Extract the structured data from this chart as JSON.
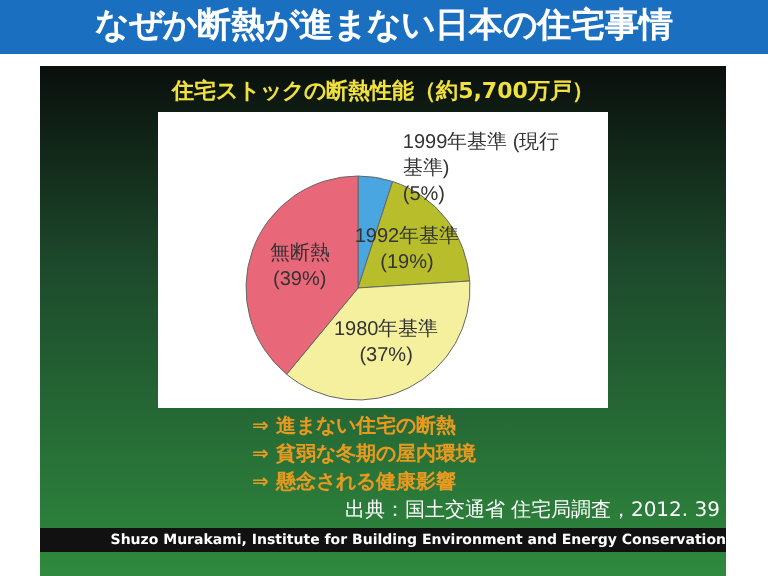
{
  "chart_data": {
    "type": "pie",
    "title": "なぜか断熱が進まない日本の住宅事情",
    "subtitle": "住宅ストックの断熱性能（約5,700万戸）",
    "categories": [
      "1999年基準 (現行基準)",
      "1992年基準",
      "1980年基準",
      "無断熱"
    ],
    "values": [
      5,
      19,
      37,
      39
    ],
    "value_labels": [
      "(5%)",
      "(19%)",
      "(37%)",
      "(39%)"
    ],
    "colors": [
      "#4aa6e0",
      "#b8bd2c",
      "#f5f09e",
      "#e8687a"
    ],
    "legend": false,
    "annotations": [
      "⇒ 進まない住宅の断熱",
      "⇒ 貧弱な冬期の屋内環境",
      "⇒ 懸念される健康影響",
      "出典：国土交通省 住宅局調査，2012. 39",
      "Shuzo Murakami,  Institute for Building Environment and Energy Conservation"
    ]
  }
}
